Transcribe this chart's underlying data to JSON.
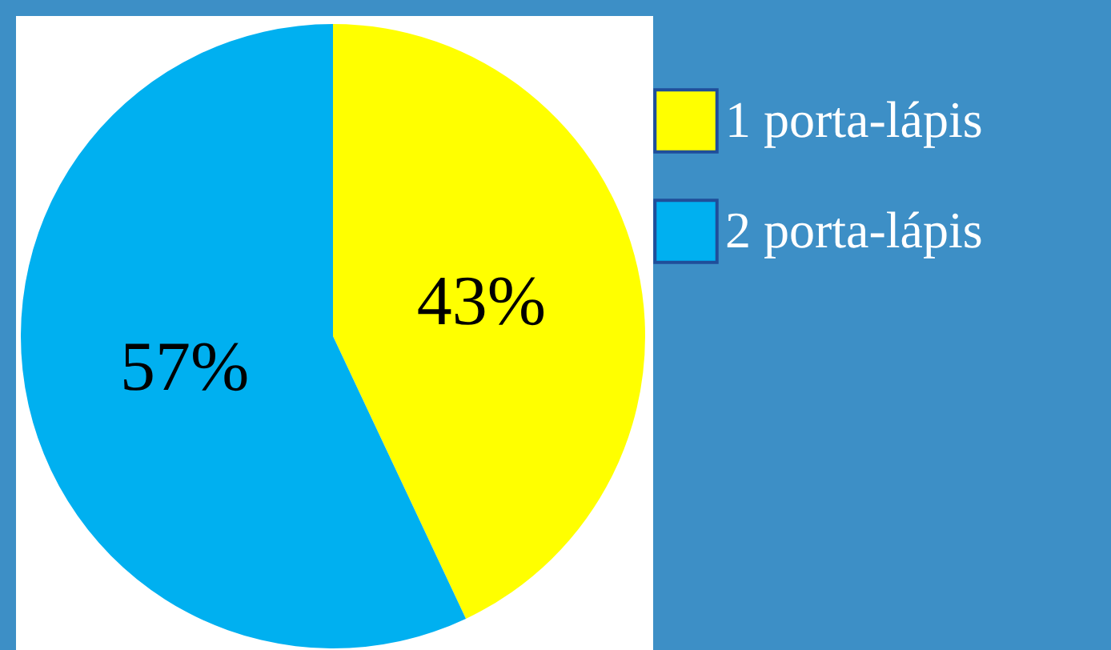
{
  "chart_data": {
    "type": "pie",
    "categories": [
      "1 porta-lápis",
      "2 porta-lápis"
    ],
    "values": [
      43,
      57
    ],
    "colors": [
      "#ffff00",
      "#00b0f0"
    ],
    "value_labels": [
      "43%",
      "57%"
    ],
    "legend": "right"
  }
}
